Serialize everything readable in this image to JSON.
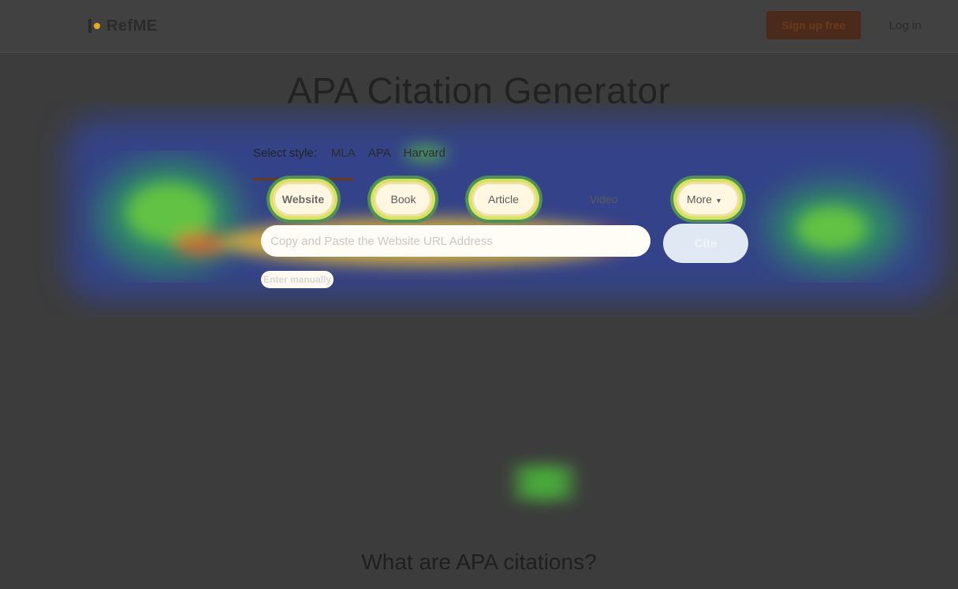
{
  "navbar": {
    "logo_text": "RefME",
    "signup_label": "Sign up free",
    "login_label": "Log in"
  },
  "hero": {
    "title": "APA Citation Generator",
    "style_label": "Select style:",
    "styles": [
      "MLA",
      "APA",
      "Harvard"
    ],
    "selected_style": "APA"
  },
  "source_tabs": [
    {
      "label": "Website",
      "active": true
    },
    {
      "label": "Book",
      "active": false
    },
    {
      "label": "Article",
      "active": false
    },
    {
      "label": "Video",
      "active": false
    },
    {
      "label": "More",
      "active": false
    }
  ],
  "search": {
    "placeholder": "Copy and Paste the Website URL Address",
    "cite_label": "Cite",
    "manual_label": "Enter manually"
  },
  "section": {
    "heading": "What are APA citations?"
  },
  "colors": {
    "background": "#3c3c3c",
    "accent": "#6a3a16",
    "cite_button": "#dfe8f3"
  },
  "icons": {
    "more_caret": "chevron-down-icon",
    "logo": "refme-logo-icon"
  }
}
